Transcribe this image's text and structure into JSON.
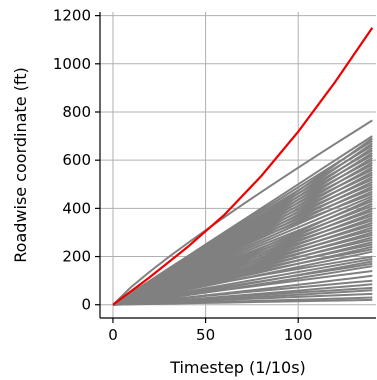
{
  "chart_data": {
    "type": "line",
    "xlabel": "Timestep (1/10s)",
    "ylabel": "Roadwise coordinate (ft)",
    "xlim": [
      -7,
      142
    ],
    "ylim": [
      -55,
      1215
    ],
    "xticks": [
      0,
      50,
      100
    ],
    "yticks": [
      0,
      200,
      400,
      600,
      800,
      1000,
      1200
    ],
    "grid": true,
    "highlight_series": {
      "color": "#ee0000",
      "x": [
        0,
        20,
        40,
        60,
        80,
        100,
        120,
        140
      ],
      "y": [
        0,
        115,
        238,
        372,
        534,
        718,
        925,
        1150
      ]
    },
    "background_series": {
      "color": "#808080",
      "x_end": 140,
      "final_values": [
        765,
        700,
        690,
        680,
        670,
        660,
        650,
        640,
        630,
        620,
        610,
        600,
        590,
        580,
        570,
        560,
        550,
        540,
        530,
        520,
        510,
        500,
        490,
        480,
        470,
        460,
        450,
        440,
        430,
        420,
        410,
        400,
        390,
        380,
        370,
        360,
        350,
        340,
        330,
        320,
        310,
        300,
        290,
        280,
        270,
        260,
        250,
        240,
        230,
        220,
        200,
        190,
        180,
        170,
        160,
        140,
        120,
        100,
        85,
        70,
        60,
        45,
        30,
        20
      ]
    }
  }
}
